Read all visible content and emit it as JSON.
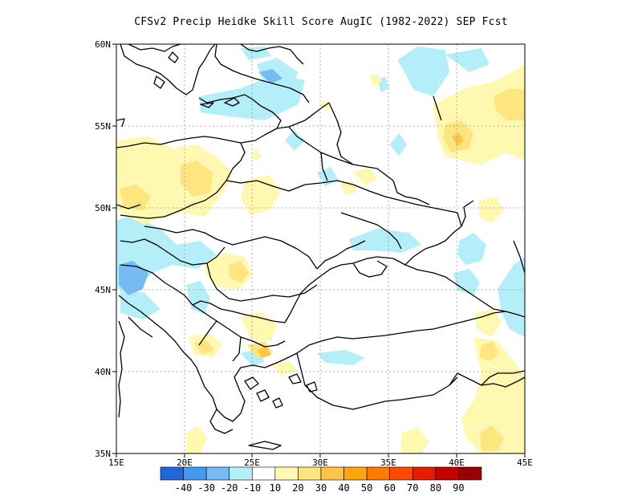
{
  "title": "CFSv2 Precip Heidke Skill Score AugIC (1982-2022) SEP Fcst",
  "map": {
    "lon_range": [
      15,
      45
    ],
    "lat_range": [
      35,
      60
    ],
    "x_ticks": [
      "15E",
      "20E",
      "25E",
      "30E",
      "35E",
      "40E",
      "45E"
    ],
    "y_ticks": [
      "35N",
      "40N",
      "45N",
      "50N",
      "55N",
      "60N"
    ],
    "grid": true
  },
  "colorbar": {
    "colors": [
      "#2266dd",
      "#4499ee",
      "#77bbf5",
      "#b4eef8",
      "#ffffff",
      "#fff8b0",
      "#ffe580",
      "#ffc44a",
      "#ffa510",
      "#ff7a00",
      "#ff4a00",
      "#e81a00",
      "#c40000",
      "#9a0000"
    ],
    "labels": [
      "-40",
      "-30",
      "-20",
      "-10",
      "10",
      "20",
      "30",
      "40",
      "50",
      "60",
      "70",
      "80",
      "90"
    ]
  },
  "colors": {
    "light_blue": "#b4eef8",
    "mid_blue": "#77bbf5",
    "pale_yellow": "#fff8b0",
    "yellow": "#ffe580",
    "orange": "#ffc44a"
  }
}
